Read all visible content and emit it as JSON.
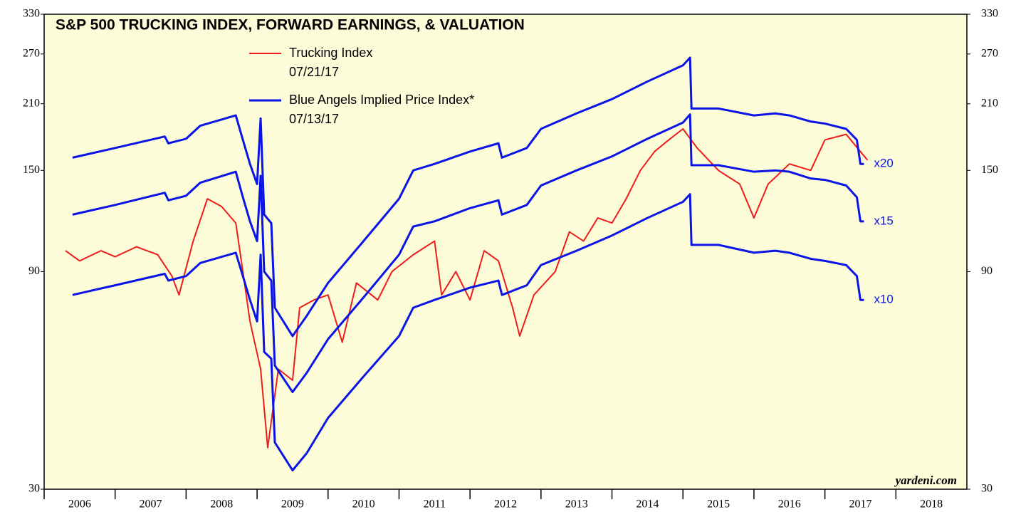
{
  "chart_data": {
    "type": "line",
    "title": "S&P 500 TRUCKING INDEX, FORWARD EARNINGS, & VALUATION",
    "source": "yardeni.com",
    "log_scale": true,
    "ylim": [
      30,
      330
    ],
    "yticks": [
      30,
      90,
      150,
      210,
      270,
      330
    ],
    "xlim": [
      2006,
      2019
    ],
    "xticks": [
      2006,
      2007,
      2008,
      2009,
      2010,
      2011,
      2012,
      2013,
      2014,
      2015,
      2016,
      2017,
      2018
    ],
    "series": [
      {
        "name": "Trucking Index",
        "date": "07/21/17",
        "color": "#ee1c1c",
        "x": [
          2006.3,
          2006.5,
          2006.8,
          2007.0,
          2007.3,
          2007.6,
          2007.8,
          2007.9,
          2008.1,
          2008.3,
          2008.5,
          2008.7,
          2008.8,
          2008.9,
          2009.05,
          2009.15,
          2009.3,
          2009.5,
          2009.6,
          2009.8,
          2010.0,
          2010.2,
          2010.4,
          2010.7,
          2010.9,
          2011.2,
          2011.5,
          2011.6,
          2011.8,
          2012.0,
          2012.2,
          2012.4,
          2012.6,
          2012.7,
          2012.9,
          2013.2,
          2013.4,
          2013.6,
          2013.8,
          2014.0,
          2014.2,
          2014.4,
          2014.6,
          2014.8,
          2015.0,
          2015.2,
          2015.5,
          2015.8,
          2016.0,
          2016.2,
          2016.5,
          2016.8,
          2017.0,
          2017.3,
          2017.5,
          2017.6
        ],
        "values": [
          100,
          95,
          100,
          97,
          102,
          98,
          88,
          80,
          105,
          130,
          125,
          115,
          90,
          70,
          55,
          37,
          55,
          52,
          75,
          78,
          80,
          63,
          85,
          78,
          90,
          98,
          105,
          80,
          90,
          78,
          100,
          95,
          75,
          65,
          80,
          90,
          110,
          105,
          118,
          115,
          130,
          150,
          165,
          175,
          185,
          168,
          150,
          140,
          118,
          140,
          155,
          150,
          175,
          180,
          165,
          158
        ]
      },
      {
        "name": "Blue Angels Implied Price Index*",
        "date": "07/13/17",
        "label": "x20",
        "color": "#0a14e6",
        "x": [
          2006.4,
          2007.0,
          2007.7,
          2007.75,
          2008.0,
          2008.2,
          2008.7,
          2008.8,
          2008.9,
          2009.0,
          2009.05,
          2009.1,
          2009.2,
          2009.25,
          2009.5,
          2009.7,
          2010.0,
          2010.5,
          2011.0,
          2011.2,
          2011.5,
          2012.0,
          2012.4,
          2012.45,
          2012.8,
          2013.0,
          2013.5,
          2014.0,
          2014.5,
          2015.0,
          2015.1,
          2015.12,
          2015.5,
          2016.0,
          2016.3,
          2016.5,
          2016.8,
          2017.0,
          2017.3,
          2017.45,
          2017.5,
          2017.55
        ],
        "values": [
          160,
          168,
          178,
          172,
          176,
          188,
          198,
          175,
          155,
          140,
          195,
          120,
          115,
          75,
          65,
          72,
          85,
          105,
          130,
          150,
          155,
          165,
          172,
          160,
          168,
          185,
          200,
          215,
          235,
          255,
          265,
          205,
          205,
          198,
          200,
          198,
          192,
          190,
          185,
          175,
          155,
          155
        ]
      },
      {
        "label": "x15",
        "color": "#0a14e6",
        "x": [
          2006.4,
          2007.0,
          2007.7,
          2007.75,
          2008.0,
          2008.2,
          2008.7,
          2008.8,
          2008.9,
          2009.0,
          2009.05,
          2009.1,
          2009.2,
          2009.25,
          2009.5,
          2009.7,
          2010.0,
          2010.5,
          2011.0,
          2011.2,
          2011.5,
          2012.0,
          2012.4,
          2012.45,
          2012.8,
          2013.0,
          2013.5,
          2014.0,
          2014.5,
          2015.0,
          2015.1,
          2015.12,
          2015.5,
          2016.0,
          2016.3,
          2016.5,
          2016.8,
          2017.0,
          2017.3,
          2017.45,
          2017.5,
          2017.55
        ],
        "values": [
          120,
          126,
          134,
          129,
          132,
          141,
          149,
          131,
          116,
          105,
          146,
          90,
          86,
          56,
          49,
          54,
          64,
          79,
          98,
          113,
          116,
          124,
          129,
          120,
          126,
          139,
          150,
          161,
          176,
          191,
          199,
          154,
          154,
          149,
          150,
          149,
          144,
          143,
          139,
          131,
          116,
          116
        ]
      },
      {
        "label": "x10",
        "color": "#0a14e6",
        "x": [
          2006.4,
          2007.0,
          2007.7,
          2007.75,
          2008.0,
          2008.2,
          2008.7,
          2008.8,
          2008.9,
          2009.0,
          2009.05,
          2009.1,
          2009.2,
          2009.25,
          2009.5,
          2009.7,
          2010.0,
          2010.5,
          2011.0,
          2011.2,
          2011.5,
          2012.0,
          2012.4,
          2012.45,
          2012.8,
          2013.0,
          2013.5,
          2014.0,
          2014.5,
          2015.0,
          2015.1,
          2015.12,
          2015.5,
          2016.0,
          2016.3,
          2016.5,
          2016.8,
          2017.0,
          2017.3,
          2017.45,
          2017.5,
          2017.55
        ],
        "values": [
          80,
          84,
          89,
          86,
          88,
          94,
          99,
          88,
          78,
          70,
          98,
          60,
          58,
          38,
          33,
          36,
          43,
          53,
          65,
          75,
          78,
          83,
          86,
          80,
          84,
          93,
          100,
          108,
          118,
          128,
          133,
          103,
          103,
          99,
          100,
          99,
          96,
          95,
          93,
          88,
          78,
          78
        ]
      }
    ]
  }
}
